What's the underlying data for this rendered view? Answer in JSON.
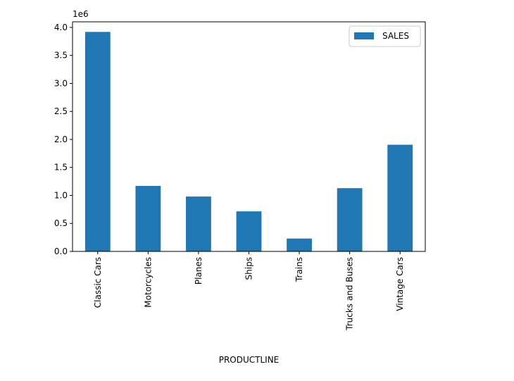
{
  "chart_data": {
    "type": "bar",
    "categories": [
      "Classic Cars",
      "Motorcycles",
      "Planes",
      "Ships",
      "Trains",
      "Trucks and Buses",
      "Vintage Cars"
    ],
    "series": [
      {
        "name": "SALES",
        "values": [
          3920000,
          1170000,
          980000,
          715000,
          230000,
          1130000,
          1905000
        ]
      }
    ],
    "xlabel": "PRODUCTLINE",
    "ylabel": "",
    "offset_label": "1e6",
    "ylim": [
      0,
      4.1
    ],
    "yticks": [
      "0.0",
      "0.5",
      "1.0",
      "1.5",
      "2.0",
      "2.5",
      "3.0",
      "3.5",
      "4.0"
    ],
    "legend_position": "top-right",
    "grid": false,
    "bar_color": "#1f77b4"
  }
}
